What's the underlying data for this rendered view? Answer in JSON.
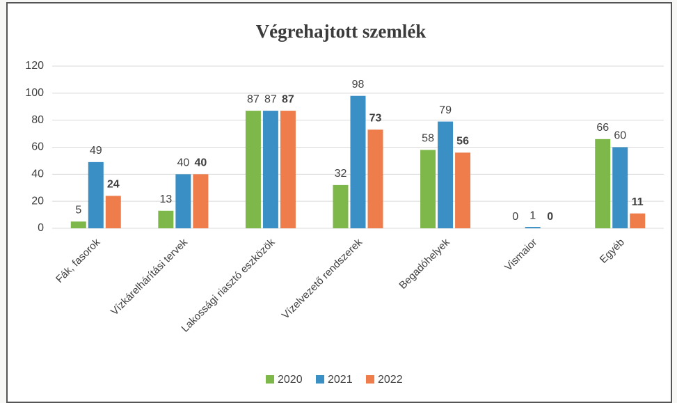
{
  "chart_data": {
    "type": "bar",
    "title": "Végrehajtott szemlék",
    "categories": [
      "Fák, fasorok",
      "Vízkárelhárítási tervek",
      "Lakossági riasztó eszközök",
      "Vízelvezető rendszerek",
      "Begadóhelyek",
      "Vismaior",
      "Egyéb"
    ],
    "series": [
      {
        "name": "2020",
        "color": "#7fb84a",
        "values": [
          5,
          13,
          87,
          32,
          58,
          0,
          66
        ]
      },
      {
        "name": "2021",
        "color": "#3a8fc4",
        "values": [
          49,
          40,
          87,
          98,
          79,
          1,
          60
        ]
      },
      {
        "name": "2022",
        "color": "#ee7d4b",
        "values": [
          24,
          40,
          87,
          73,
          56,
          0,
          11
        ],
        "bold_labels": true
      }
    ],
    "ylim": [
      0,
      120
    ],
    "yticks": [
      0,
      20,
      40,
      60,
      80,
      100,
      120
    ],
    "grid": true,
    "legend": "bottom"
  }
}
